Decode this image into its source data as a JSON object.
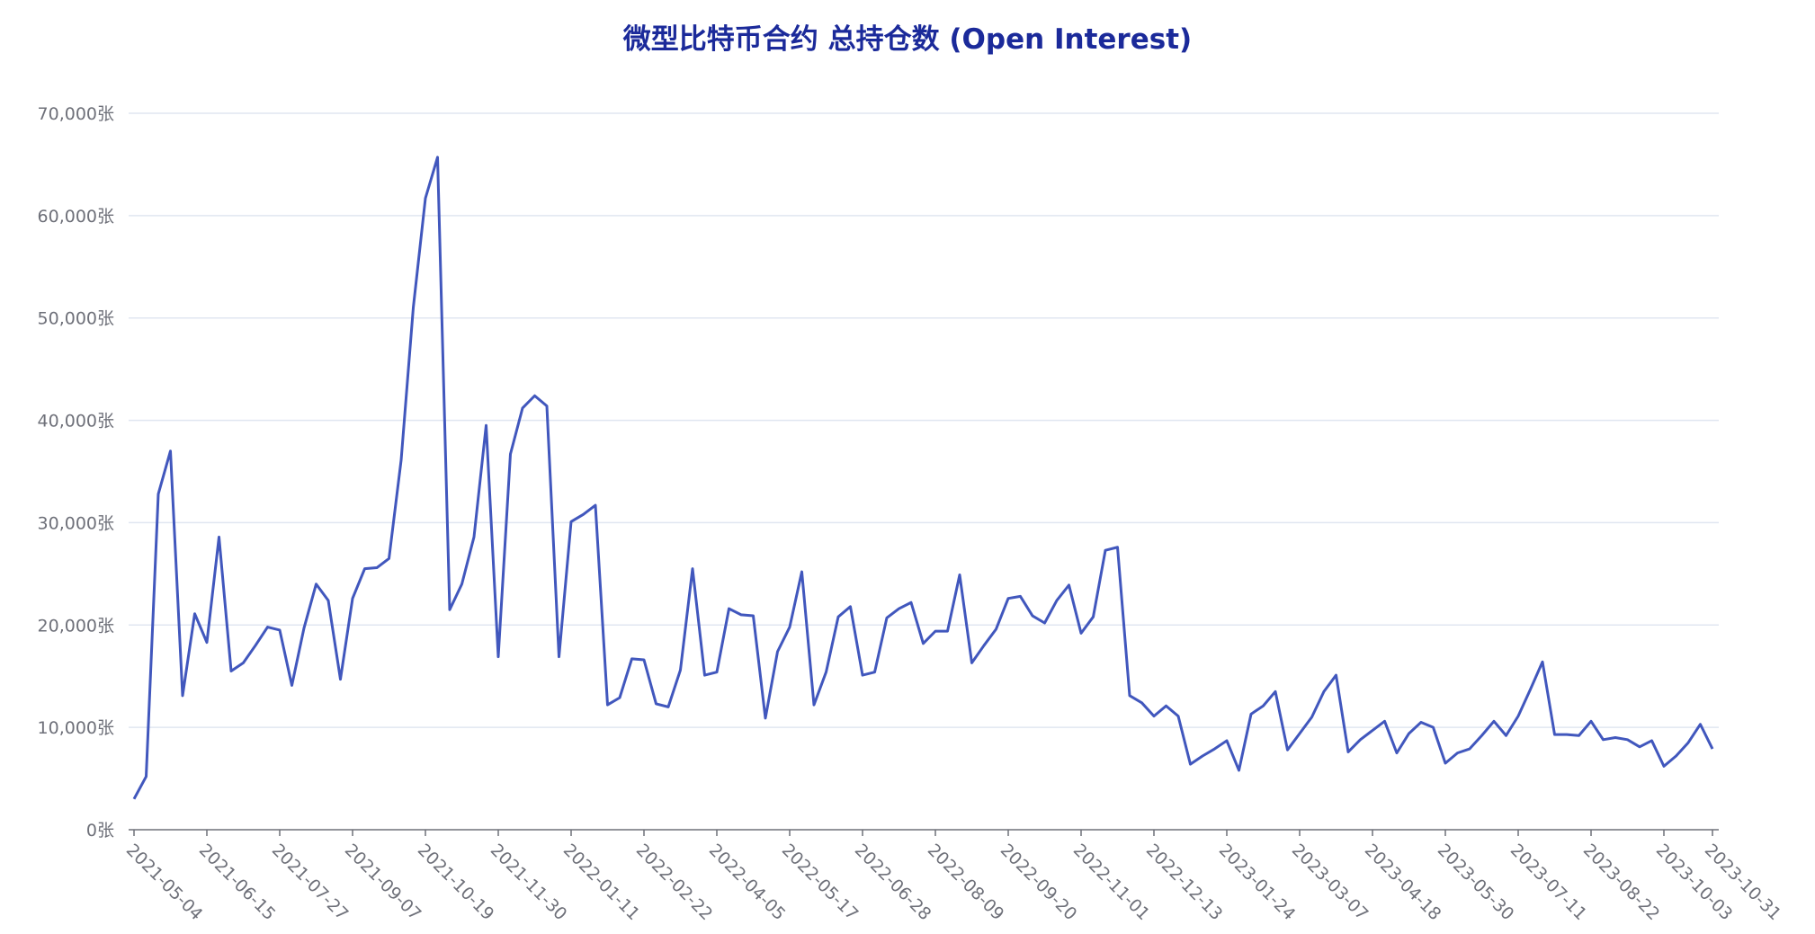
{
  "chart_data": {
    "type": "line",
    "title": "微型比特币合约 总持仓数 (Open Interest)",
    "xlabel": "",
    "ylabel": "",
    "y_unit": "张",
    "ylim": [
      0,
      70000
    ],
    "y_ticks": [
      "0张",
      "10,000张",
      "20,000张",
      "30,000张",
      "40,000张",
      "50,000张",
      "60,000张",
      "70,000张"
    ],
    "y_tick_values": [
      0,
      10000,
      20000,
      30000,
      40000,
      50000,
      60000,
      70000
    ],
    "x_tick_labels": [
      "2021-05-04",
      "2021-06-15",
      "2021-07-27",
      "2021-09-07",
      "2021-10-19",
      "2021-11-30",
      "2022-01-11",
      "2022-02-22",
      "2022-04-05",
      "2022-05-17",
      "2022-06-28",
      "2022-08-09",
      "2022-09-20",
      "2022-11-01",
      "2022-12-13",
      "2023-01-24",
      "2023-03-07",
      "2023-04-18",
      "2023-05-30",
      "2023-07-11",
      "2023-08-22",
      "2023-10-03",
      "2023-10-31"
    ],
    "grid": true,
    "colors": {
      "line": "#4157bd",
      "grid": "#e0e6f1",
      "axis": "#6e7079",
      "title": "#1b2a9a"
    },
    "series": [
      {
        "values": [
          3000,
          5200,
          32800,
          37000,
          13100,
          21100,
          18300,
          28600,
          15500,
          16300,
          18000,
          19800,
          19500,
          14100,
          19700,
          24000,
          22400,
          14700,
          22600,
          25500,
          25600,
          26500,
          36100,
          51000,
          61700,
          65700,
          21500,
          24000,
          28600,
          39500,
          16900,
          36700,
          41200,
          42400,
          41400,
          16900,
          30100,
          30800,
          31700,
          12200,
          12900,
          16700,
          16600,
          12300,
          12000,
          15600,
          25500,
          15100,
          15400,
          21600,
          21000,
          20900,
          10900,
          17400,
          19800,
          25200,
          12200,
          15400,
          20800,
          21800,
          15100,
          15400,
          20700,
          21600,
          22200,
          18200,
          19400,
          19400,
          24900,
          16300,
          18000,
          19600,
          22600,
          22800,
          20900,
          20200,
          22400,
          23900,
          19200,
          20800,
          27300,
          27600,
          13100,
          12400,
          11100,
          12100,
          11100,
          6400,
          7200,
          7900,
          8700,
          5800,
          11300,
          12100,
          13500,
          7800,
          9400,
          11000,
          13500,
          15100,
          7600,
          8800,
          9700,
          10600,
          7500,
          9400,
          10500,
          10000,
          6500,
          7500,
          7900,
          9200,
          10600,
          9200,
          11100,
          13700,
          16400,
          9300,
          9300,
          9200,
          10600,
          8800,
          9000,
          8800,
          8100,
          8700,
          6200,
          7200,
          8500,
          10300,
          7900
        ]
      }
    ]
  }
}
